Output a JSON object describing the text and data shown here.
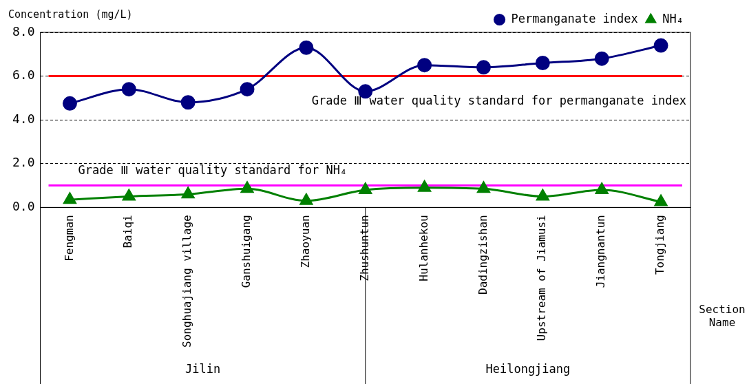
{
  "chart_data": {
    "type": "line",
    "xlabel": "Section Name",
    "ylabel": "Concentration (mg/L)",
    "categories": [
      "Fengman",
      "Baiqi",
      "Songhuajiang village",
      "Ganshuigang",
      "Zhaoyuan",
      "Zhushuntun",
      "Hulanhekou",
      "Dadingzishan",
      "Upstream of Jiamusi",
      "Jiangnantun",
      "Tongjiang"
    ],
    "series": [
      {
        "name": "Permanganate index",
        "color": "#000080",
        "marker": "circle",
        "values": [
          4.75,
          5.4,
          4.8,
          5.4,
          7.3,
          5.3,
          6.5,
          6.4,
          6.6,
          6.8,
          7.4
        ]
      },
      {
        "name": "NH₄",
        "color": "#008000",
        "marker": "triangle",
        "values": [
          0.35,
          0.5,
          0.6,
          0.85,
          0.3,
          0.8,
          0.9,
          0.85,
          0.5,
          0.8,
          0.25
        ]
      }
    ],
    "ylim": [
      0,
      8
    ],
    "yticks": [
      {
        "value": 0,
        "label": "0.0"
      },
      {
        "value": 2,
        "label": "2.0"
      },
      {
        "value": 4,
        "label": "4.0"
      },
      {
        "value": 6,
        "label": "6.0"
      },
      {
        "value": 8,
        "label": "8.0"
      }
    ],
    "grid": "y",
    "legend": "top right",
    "ref_lines": [
      {
        "axis": "y",
        "value": 6,
        "label": "Grade Ⅲ water quality standard for permanganate index",
        "color": "#ff0000"
      },
      {
        "axis": "y",
        "value": 1,
        "label": "Grade Ⅲ water quality standard for NH₄",
        "color": "#ff00ff"
      }
    ],
    "annotations": [
      "Jilin",
      "Heilongjiang"
    ]
  }
}
